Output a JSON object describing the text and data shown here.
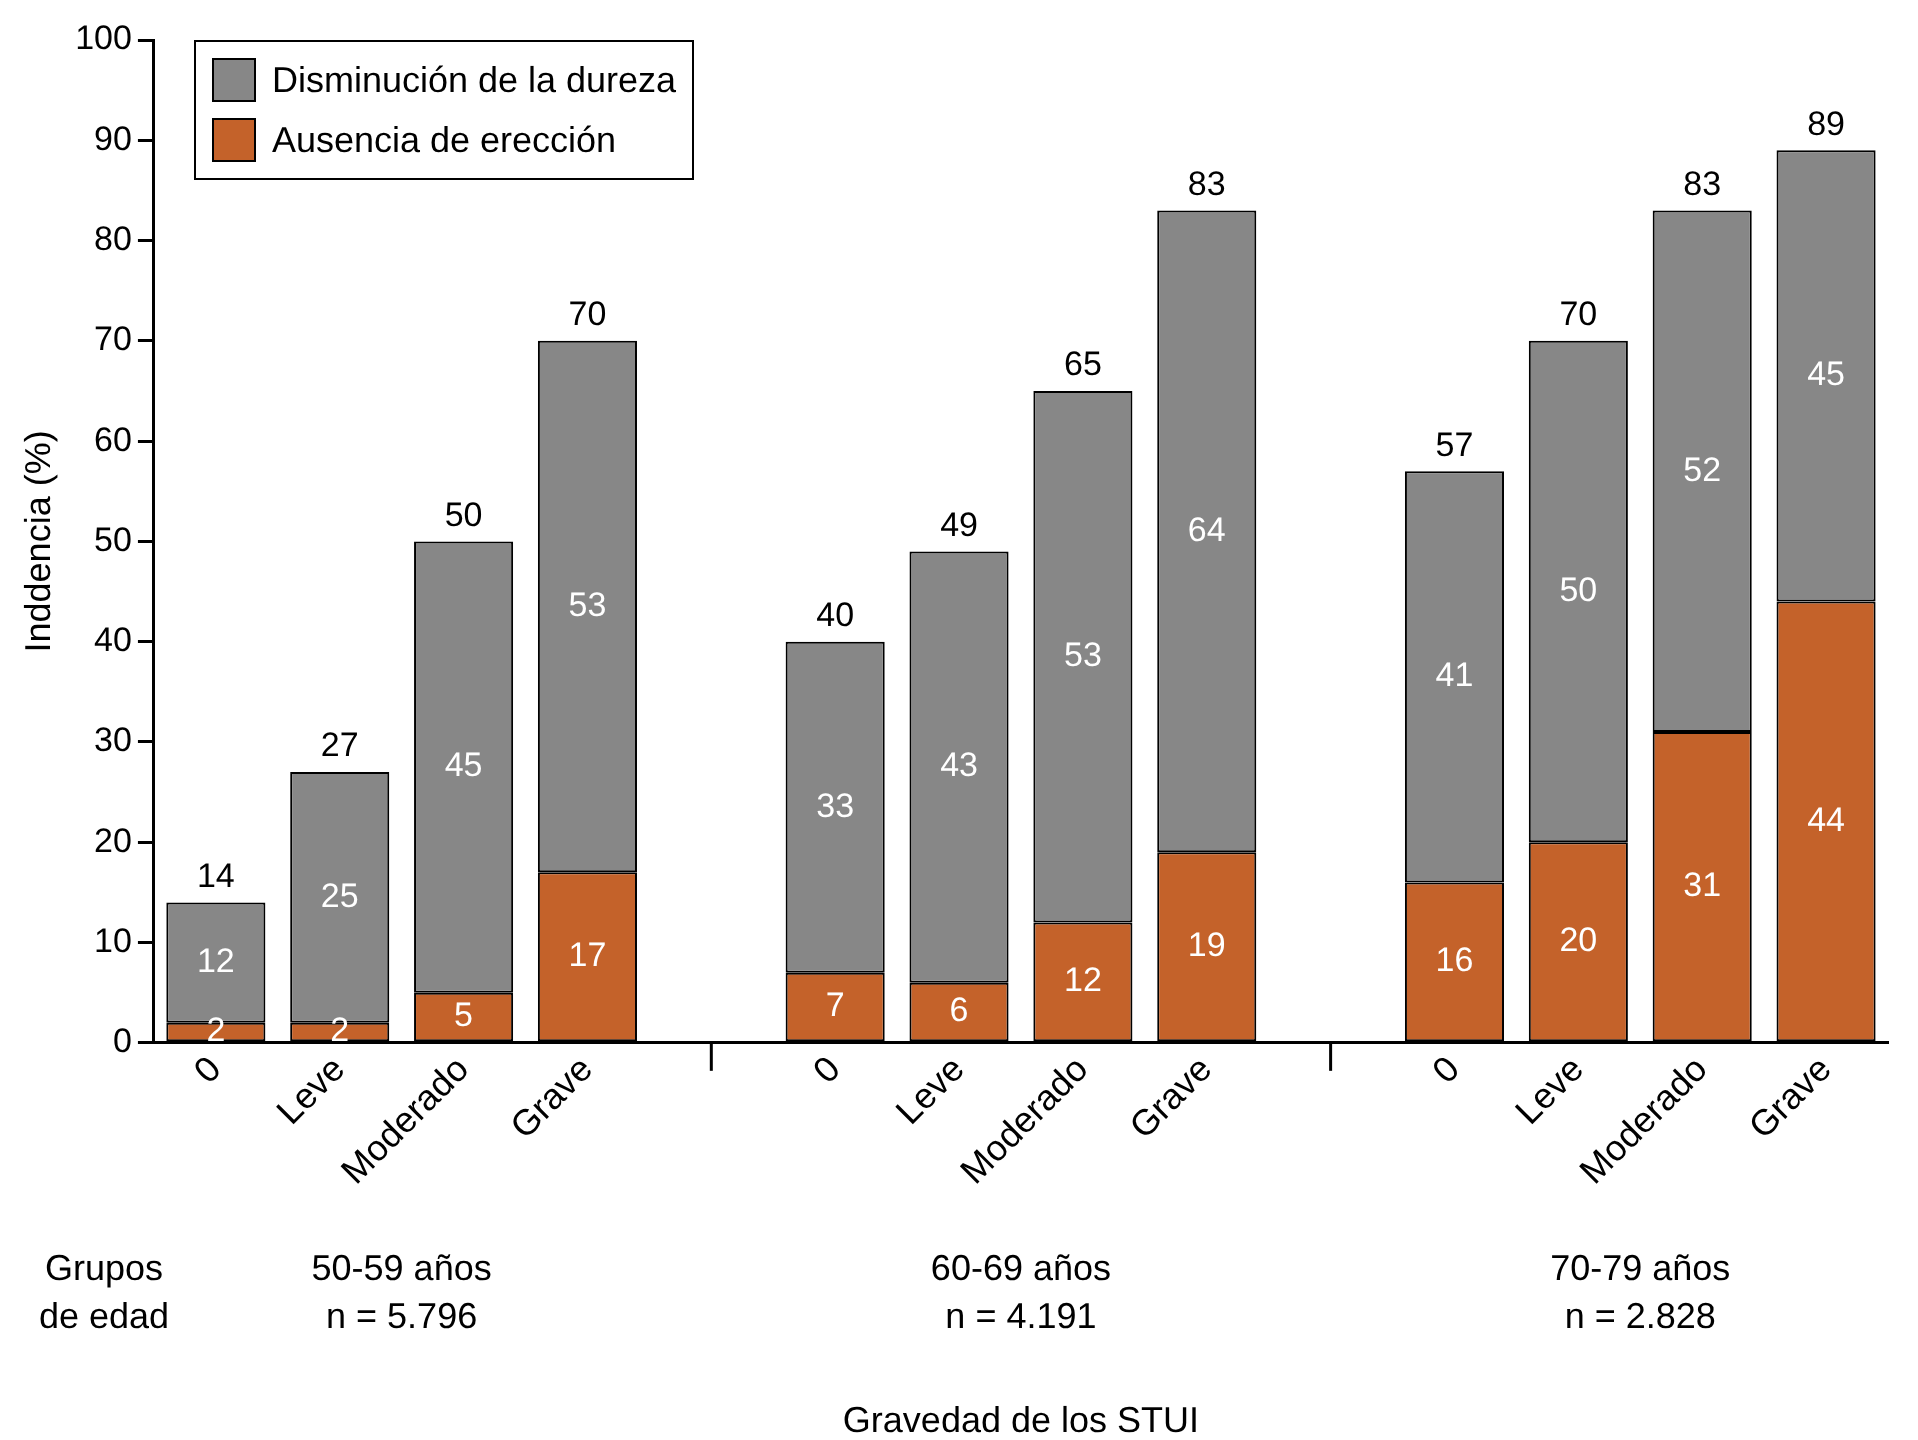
{
  "chart_data": {
    "type": "bar",
    "stacked": true,
    "ylabel": "Inddencia (%)",
    "categories": [
      "0",
      "Leve",
      "Moderado",
      "Grave",
      null,
      "0",
      "Leve",
      "Moderado",
      "Grave",
      null,
      "0",
      "Leve",
      "Moderado",
      "Grave"
    ],
    "series": [
      {
        "name": "Ausencia de erección",
        "color": "#c4622a",
        "values": [
          2,
          2,
          5,
          17,
          null,
          7,
          6,
          12,
          19,
          null,
          16,
          20,
          31,
          44
        ]
      },
      {
        "name": "Disminución de la dureza",
        "color": "#878787",
        "values": [
          12,
          25,
          45,
          53,
          null,
          33,
          43,
          53,
          64,
          null,
          41,
          50,
          52,
          45
        ]
      }
    ],
    "totals": [
      "14",
      "27",
      "50",
      "70",
      null,
      "40",
      "49",
      "65",
      "83",
      null,
      "57",
      "70",
      "83",
      "89"
    ],
    "data_labels": true,
    "ylim": [
      0,
      100
    ],
    "yticks": [
      0,
      10,
      20,
      30,
      40,
      50,
      60,
      70,
      80,
      90,
      100
    ],
    "grid": false,
    "legend": "top left",
    "annotations": [
      "Grupos\nde edad",
      "50-59 años\nn = 5.796",
      "60-69 años\nn = 4.191",
      "70-79 años\nn = 2.828",
      "Gravedad de los STUI"
    ]
  }
}
